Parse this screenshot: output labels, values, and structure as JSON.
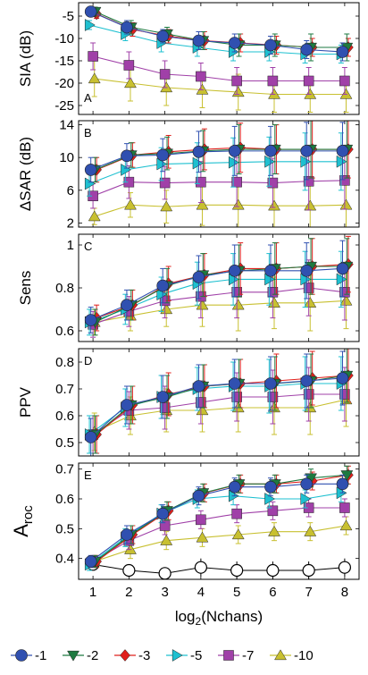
{
  "chart_data": {
    "type": "line",
    "title": "",
    "xlabel": "log2(Nchans)",
    "x": [
      1,
      2,
      3,
      4,
      5,
      6,
      7,
      8
    ],
    "xticks": [
      "1",
      "2",
      "3",
      "4",
      "5",
      "6",
      "7",
      "8"
    ],
    "legend": {
      "placement": "bottom",
      "entries": [
        {
          "name": "1",
          "color": "#3050b0",
          "marker": "circle"
        },
        {
          "name": "2",
          "color": "#1e7a40",
          "marker": "triangle-down"
        },
        {
          "name": "3",
          "color": "#e0201c",
          "marker": "diamond"
        },
        {
          "name": "5",
          "color": "#1ec0d0",
          "marker": "triangle-right"
        },
        {
          "name": "7",
          "color": "#a040a8",
          "marker": "square"
        },
        {
          "name": "10",
          "color": "#c8c030",
          "marker": "triangle-up"
        }
      ]
    },
    "panels": [
      {
        "letter": "A",
        "ylabel": "SIA (dB)",
        "ylim": [
          -27,
          -2
        ],
        "yticks": [
          -5,
          -10,
          -15,
          -20,
          -25
        ],
        "series": [
          {
            "name": "1",
            "values": [
              -4,
              -7.5,
              -9.5,
              -10.5,
              -11,
              -11.5,
              -12.5,
              -13
            ],
            "err": [
              1,
              1.5,
              1.5,
              2,
              2,
              2,
              2,
              2
            ]
          },
          {
            "name": "2",
            "values": [
              -4,
              -7.5,
              -9,
              -10.5,
              -11.5,
              -11.5,
              -12,
              -12
            ],
            "err": [
              1,
              1.5,
              1.5,
              2,
              2.5,
              2.5,
              3,
              3
            ]
          },
          {
            "name": "3",
            "values": [
              -4.5,
              -8,
              -9.5,
              -10.5,
              -11,
              -11.5,
              -12,
              -12
            ],
            "err": [
              1,
              1.5,
              1.5,
              2,
              2,
              2,
              2,
              2
            ]
          },
          {
            "name": "5",
            "values": [
              -7,
              -9,
              -11,
              -12,
              -13,
              -13,
              -13.5,
              -13.5
            ],
            "err": [
              1,
              1.5,
              2,
              2,
              2,
              2,
              2,
              2
            ]
          },
          {
            "name": "7",
            "values": [
              -14,
              -16,
              -18,
              -18.5,
              -19.5,
              -19.5,
              -19.5,
              -19.5
            ],
            "err": [
              3,
              3,
              3,
              3,
              3,
              3,
              3,
              3
            ]
          },
          {
            "name": "10",
            "values": [
              -19,
              -20,
              -21,
              -21.5,
              -22,
              -22.5,
              -22.5,
              -22.5
            ],
            "err": [
              4,
              4,
              4,
              4,
              4,
              4,
              4,
              4
            ]
          }
        ]
      },
      {
        "letter": "B",
        "ylabel": "ΔSAR (dB)",
        "ylim": [
          1.5,
          14.5
        ],
        "yticks": [
          2,
          6,
          10,
          14
        ],
        "series": [
          {
            "name": "1",
            "values": [
              8.5,
              10.2,
              10.3,
              10.7,
              10.8,
              10.8,
              10.8,
              10.8
            ],
            "err": [
              1.5,
              1.5,
              2,
              2.5,
              3,
              3,
              3.5,
              3.5
            ]
          },
          {
            "name": "2",
            "values": [
              8.5,
              10.3,
              10.5,
              10.8,
              11,
              11,
              11,
              11
            ],
            "err": [
              1.5,
              1.5,
              2,
              2.5,
              3,
              3,
              3.5,
              3.5
            ]
          },
          {
            "name": "3",
            "values": [
              8.5,
              10.3,
              10.7,
              11,
              11.2,
              11,
              11,
              11
            ],
            "err": [
              1.5,
              1.5,
              2,
              2.5,
              3,
              3,
              3.5,
              3.5
            ]
          },
          {
            "name": "5",
            "values": [
              6.8,
              8.5,
              9.2,
              9.3,
              9.4,
              9.5,
              9.5,
              9.5
            ],
            "err": [
              1.5,
              1.5,
              2,
              2.5,
              3,
              3,
              3.5,
              3.5
            ]
          },
          {
            "name": "7",
            "values": [
              5.3,
              7,
              6.9,
              7,
              7,
              6.9,
              7.1,
              7.2
            ],
            "err": [
              1.5,
              2,
              2,
              2.5,
              3,
              3,
              3.5,
              3.5
            ]
          },
          {
            "name": "10",
            "values": [
              2.8,
              4.2,
              4,
              4.2,
              4.2,
              4.1,
              4.1,
              4.2
            ],
            "err": [
              1,
              1.5,
              2,
              2.5,
              3,
              3,
              3.5,
              3.5
            ]
          }
        ]
      },
      {
        "letter": "C",
        "ylabel": "Sens",
        "ylim": [
          0.55,
          1.05
        ],
        "yticks": [
          0.6,
          0.8,
          1
        ],
        "ytick_labels": [
          "0.6",
          "0.8",
          "1"
        ],
        "series": [
          {
            "name": "1",
            "values": [
              0.65,
              0.72,
              0.81,
              0.85,
              0.88,
              0.88,
              0.88,
              0.89
            ],
            "err": [
              0.06,
              0.07,
              0.08,
              0.1,
              0.12,
              0.12,
              0.13,
              0.13
            ]
          },
          {
            "name": "2",
            "values": [
              0.64,
              0.72,
              0.81,
              0.86,
              0.88,
              0.89,
              0.9,
              0.9
            ],
            "err": [
              0.06,
              0.07,
              0.08,
              0.1,
              0.12,
              0.12,
              0.13,
              0.13
            ]
          },
          {
            "name": "3",
            "values": [
              0.66,
              0.72,
              0.82,
              0.86,
              0.89,
              0.89,
              0.9,
              0.91
            ],
            "err": [
              0.06,
              0.07,
              0.08,
              0.1,
              0.12,
              0.12,
              0.13,
              0.13
            ]
          },
          {
            "name": "5",
            "values": [
              0.64,
              0.7,
              0.77,
              0.82,
              0.84,
              0.84,
              0.84,
              0.84
            ],
            "err": [
              0.06,
              0.07,
              0.08,
              0.1,
              0.12,
              0.12,
              0.13,
              0.13
            ]
          },
          {
            "name": "7",
            "values": [
              0.63,
              0.69,
              0.74,
              0.76,
              0.78,
              0.78,
              0.8,
              0.78
            ],
            "err": [
              0.06,
              0.07,
              0.08,
              0.1,
              0.12,
              0.12,
              0.13,
              0.13
            ]
          },
          {
            "name": "10",
            "values": [
              0.64,
              0.67,
              0.7,
              0.72,
              0.72,
              0.73,
              0.73,
              0.74
            ],
            "err": [
              0.06,
              0.07,
              0.08,
              0.1,
              0.12,
              0.12,
              0.13,
              0.13
            ]
          }
        ]
      },
      {
        "letter": "D",
        "ylabel": "PPV",
        "ylim": [
          0.45,
          0.85
        ],
        "yticks": [
          0.5,
          0.6,
          0.7,
          0.8
        ],
        "ytick_labels": [
          "0.5",
          "0.6",
          "0.7",
          "0.8"
        ],
        "series": [
          {
            "name": "1",
            "values": [
              0.52,
              0.64,
              0.67,
              0.71,
              0.72,
              0.72,
              0.73,
              0.74
            ],
            "err": [
              0.07,
              0.07,
              0.08,
              0.08,
              0.09,
              0.1,
              0.1,
              0.1
            ]
          },
          {
            "name": "2",
            "values": [
              0.53,
              0.64,
              0.67,
              0.71,
              0.72,
              0.72,
              0.73,
              0.75
            ],
            "err": [
              0.07,
              0.07,
              0.08,
              0.08,
              0.09,
              0.1,
              0.1,
              0.1
            ]
          },
          {
            "name": "3",
            "values": [
              0.53,
              0.64,
              0.68,
              0.71,
              0.72,
              0.73,
              0.74,
              0.75
            ],
            "err": [
              0.07,
              0.07,
              0.08,
              0.08,
              0.09,
              0.1,
              0.1,
              0.1
            ]
          },
          {
            "name": "5",
            "values": [
              0.53,
              0.63,
              0.67,
              0.7,
              0.71,
              0.71,
              0.72,
              0.72
            ],
            "err": [
              0.07,
              0.07,
              0.08,
              0.08,
              0.09,
              0.1,
              0.1,
              0.1
            ]
          },
          {
            "name": "7",
            "values": [
              0.53,
              0.62,
              0.63,
              0.65,
              0.67,
              0.67,
              0.68,
              0.68
            ],
            "err": [
              0.07,
              0.07,
              0.08,
              0.08,
              0.09,
              0.1,
              0.1,
              0.1
            ]
          },
          {
            "name": "10",
            "values": [
              0.54,
              0.6,
              0.62,
              0.62,
              0.63,
              0.63,
              0.63,
              0.66
            ],
            "err": [
              0.07,
              0.07,
              0.08,
              0.08,
              0.09,
              0.1,
              0.1,
              0.1
            ]
          }
        ]
      },
      {
        "letter": "E",
        "ylabel_main": "A",
        "ylabel_sub": "roc",
        "ylim": [
          0.33,
          0.72
        ],
        "yticks": [
          0.4,
          0.5,
          0.6,
          0.7
        ],
        "ytick_labels": [
          "0.4",
          "0.5",
          "0.6",
          "0.7"
        ],
        "series": [
          {
            "name": "1",
            "values": [
              0.39,
              0.48,
              0.55,
              0.61,
              0.64,
              0.64,
              0.65,
              0.65
            ],
            "err": [
              0.02,
              0.03,
              0.03,
              0.03,
              0.03,
              0.03,
              0.03,
              0.03
            ]
          },
          {
            "name": "2",
            "values": [
              0.39,
              0.48,
              0.56,
              0.62,
              0.65,
              0.65,
              0.67,
              0.68
            ],
            "err": [
              0.02,
              0.03,
              0.03,
              0.03,
              0.03,
              0.03,
              0.03,
              0.03
            ]
          },
          {
            "name": "3",
            "values": [
              0.39,
              0.48,
              0.56,
              0.62,
              0.65,
              0.65,
              0.66,
              0.68
            ],
            "err": [
              0.02,
              0.03,
              0.03,
              0.03,
              0.03,
              0.03,
              0.03,
              0.03
            ]
          },
          {
            "name": "5",
            "values": [
              0.38,
              0.47,
              0.55,
              0.6,
              0.61,
              0.6,
              0.6,
              0.62
            ],
            "err": [
              0.02,
              0.03,
              0.03,
              0.03,
              0.03,
              0.03,
              0.03,
              0.03
            ]
          },
          {
            "name": "7",
            "values": [
              0.39,
              0.46,
              0.51,
              0.53,
              0.55,
              0.56,
              0.57,
              0.57
            ],
            "err": [
              0.02,
              0.03,
              0.03,
              0.03,
              0.03,
              0.03,
              0.03,
              0.03
            ]
          },
          {
            "name": "10",
            "values": [
              0.39,
              0.43,
              0.46,
              0.47,
              0.48,
              0.49,
              0.49,
              0.51
            ],
            "err": [
              0.02,
              0.03,
              0.03,
              0.03,
              0.03,
              0.03,
              0.03,
              0.03
            ]
          }
        ],
        "baseline": {
          "values": [
            0.38,
            0.36,
            0.35,
            0.37,
            0.36,
            0.36,
            0.36,
            0.37
          ],
          "err": [
            0.02,
            0.02,
            0.02,
            0.03,
            0.03,
            0.03,
            0.03,
            0.03
          ],
          "color": "#000000",
          "marker": "open-circle"
        }
      }
    ]
  }
}
